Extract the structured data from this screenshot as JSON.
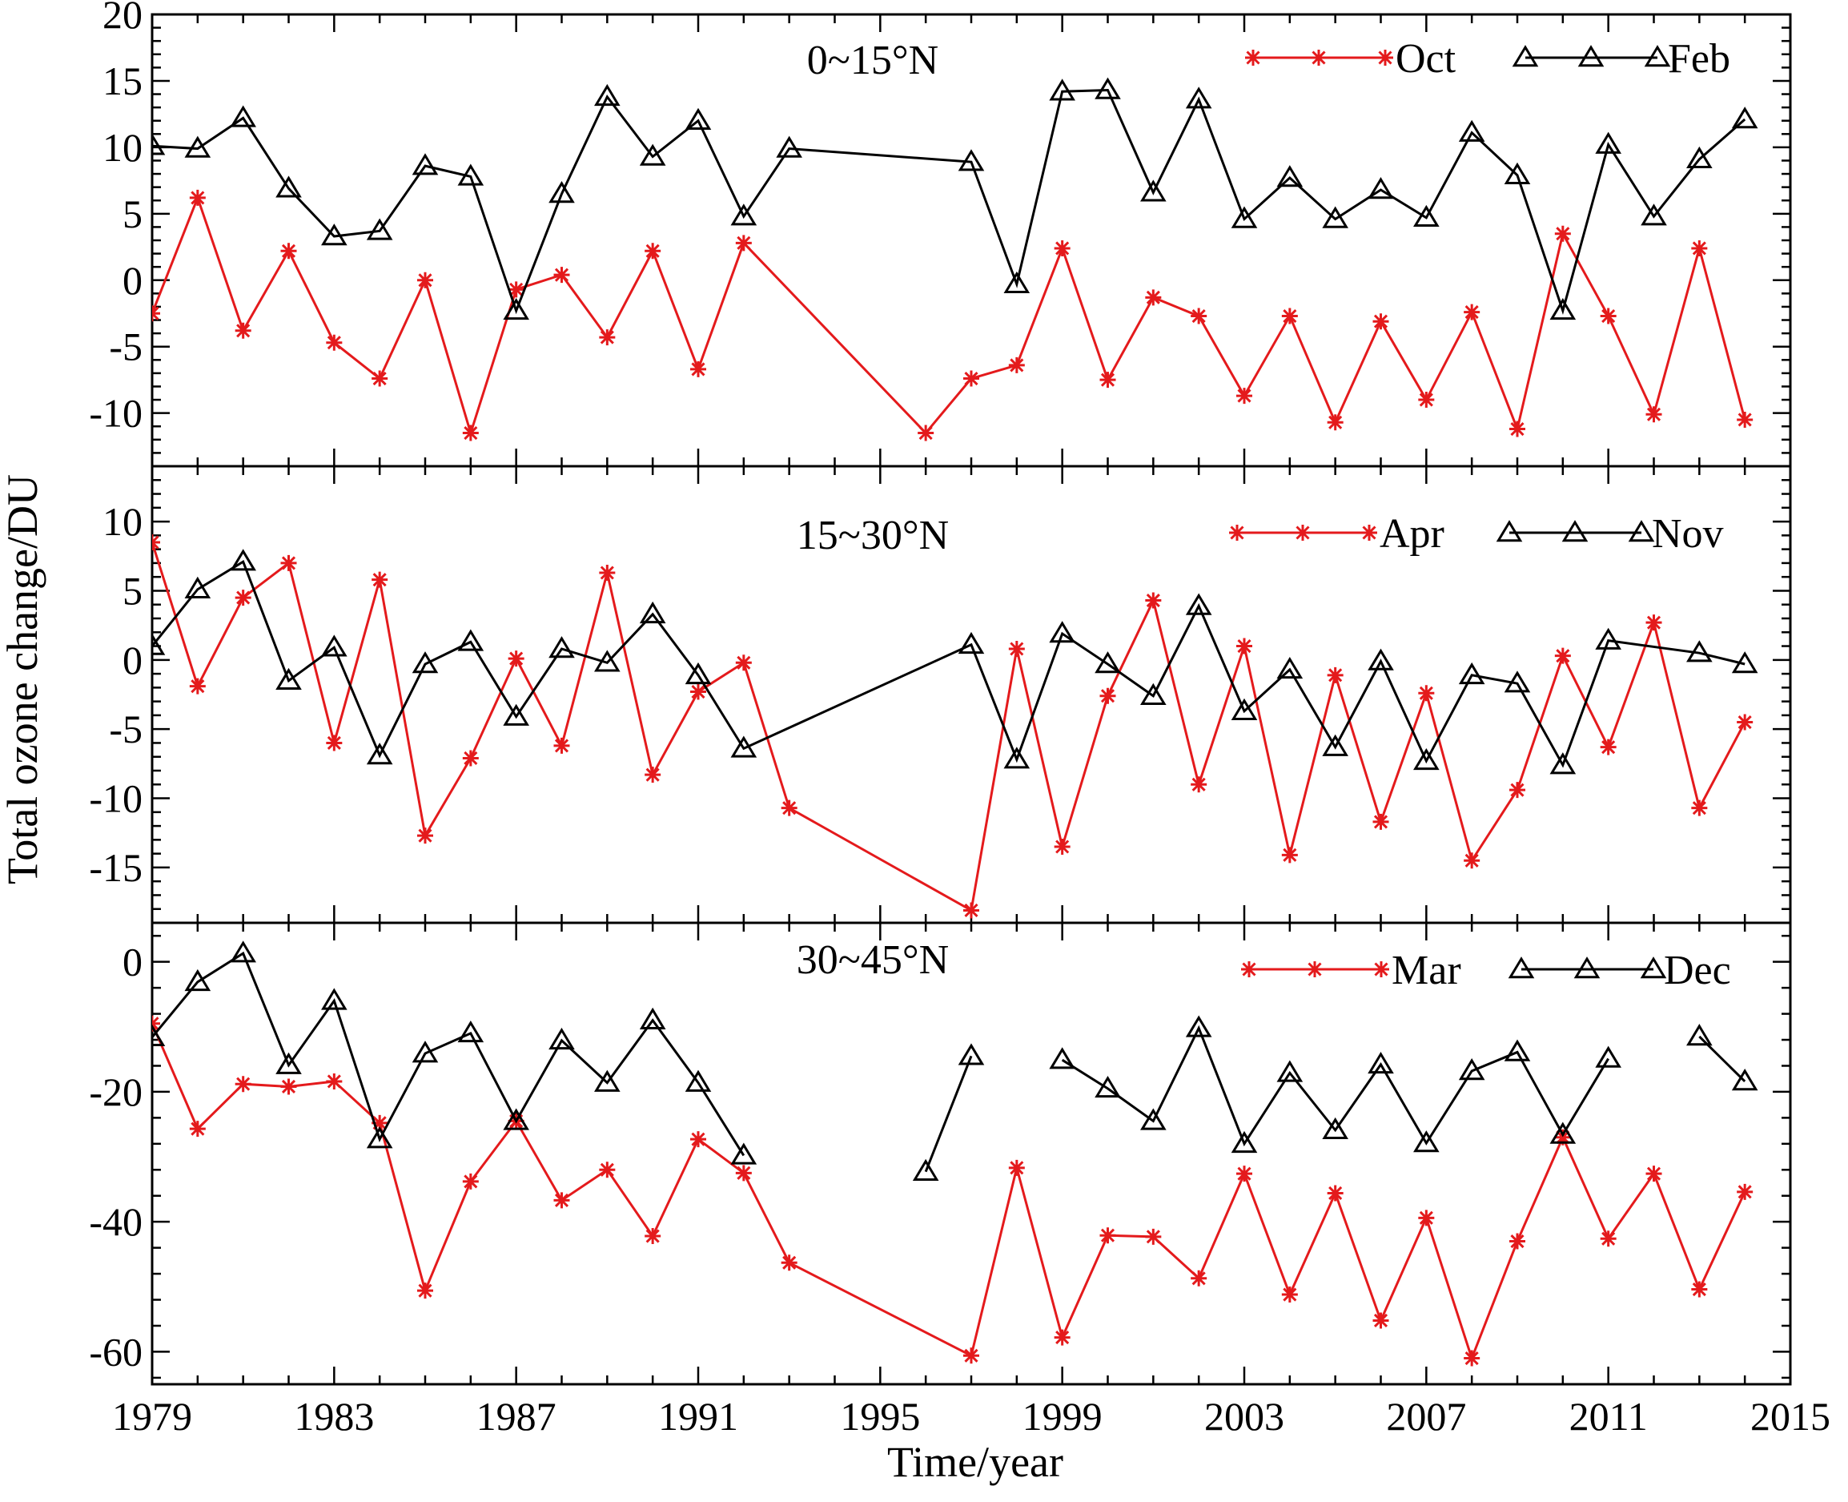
{
  "chart_data": {
    "type": "line",
    "ylabel": "Total ozone change/DU",
    "xlabel": "Time/year",
    "xlim": [
      1979,
      2015
    ],
    "xticks": [
      1979,
      1983,
      1987,
      1991,
      1995,
      1999,
      2003,
      2007,
      2011,
      2015
    ],
    "panels": [
      {
        "title": "0~15°N",
        "ylim": [
          -14,
          20
        ],
        "yticks": [
          -10,
          -5,
          0,
          5,
          10,
          15,
          20
        ],
        "series": [
          {
            "name": "Oct",
            "color": "#e41a1c",
            "marker": "star",
            "x": [
              1979,
              1980,
              1981,
              1982,
              1983,
              1984,
              1985,
              1986,
              1987,
              1988,
              1989,
              1990,
              1991,
              1992,
              1996,
              1997,
              1998,
              1999,
              2000,
              2001,
              2002,
              2003,
              2004,
              2005,
              2006,
              2007,
              2008,
              2009,
              2010,
              2011,
              2012,
              2013,
              2014
            ],
            "y": [
              -2.5,
              6.2,
              -3.8,
              2.2,
              -4.7,
              -7.4,
              0.0,
              -11.5,
              -0.7,
              0.4,
              -4.3,
              2.2,
              -6.7,
              2.8,
              -11.5,
              -7.4,
              -6.4,
              2.4,
              -7.5,
              -1.3,
              -2.7,
              -8.7,
              -2.7,
              -10.7,
              -3.1,
              -9.0,
              -2.4,
              -11.2,
              3.5,
              -2.7,
              -10.1,
              2.4,
              -10.5
            ]
          },
          {
            "name": "Feb",
            "color": "#000000",
            "marker": "triangle",
            "x": [
              1979,
              1980,
              1981,
              1982,
              1983,
              1984,
              1985,
              1986,
              1987,
              1988,
              1989,
              1990,
              1991,
              1992,
              1993,
              1997,
              1998,
              1999,
              2000,
              2001,
              2002,
              2003,
              2004,
              2005,
              2006,
              2007,
              2008,
              2009,
              2010,
              2011,
              2012,
              2013,
              2014
            ],
            "y": [
              10.1,
              9.9,
              12.2,
              6.9,
              3.3,
              3.7,
              8.6,
              7.8,
              -2.3,
              6.5,
              13.8,
              9.3,
              12.0,
              4.8,
              9.9,
              8.9,
              -0.3,
              14.2,
              14.3,
              6.6,
              13.6,
              4.6,
              7.7,
              4.6,
              6.8,
              4.7,
              11.1,
              7.9,
              -2.3,
              10.2,
              4.8,
              9.1,
              12.1
            ]
          }
        ]
      },
      {
        "title": "15~30°N",
        "ylim": [
          -19,
          14
        ],
        "yticks": [
          -15,
          -10,
          -5,
          0,
          5,
          10
        ],
        "series": [
          {
            "name": "Apr",
            "color": "#e41a1c",
            "marker": "star",
            "x": [
              1979,
              1980,
              1981,
              1982,
              1983,
              1984,
              1985,
              1986,
              1987,
              1988,
              1989,
              1990,
              1991,
              1992,
              1993,
              1997,
              1998,
              1999,
              2000,
              2001,
              2002,
              2003,
              2004,
              2005,
              2006,
              2007,
              2008,
              2009,
              2010,
              2011,
              2012,
              2013,
              2014
            ],
            "y": [
              8.5,
              -1.9,
              4.5,
              7.0,
              -6.0,
              5.8,
              -12.7,
              -7.1,
              0.1,
              -6.2,
              6.3,
              -8.3,
              -2.3,
              -0.2,
              -10.7,
              -18.1,
              0.8,
              -13.5,
              -2.6,
              4.3,
              -9.0,
              1.0,
              -14.1,
              -1.1,
              -11.7,
              -2.4,
              -14.5,
              -9.4,
              0.3,
              -6.3,
              2.7,
              -10.7,
              -4.5
            ]
          },
          {
            "name": "Nov",
            "color": "#000000",
            "marker": "triangle",
            "x": [
              1979,
              1980,
              1981,
              1982,
              1983,
              1984,
              1985,
              1986,
              1987,
              1988,
              1989,
              1990,
              1991,
              1992,
              1997,
              1998,
              1999,
              2000,
              2001,
              2002,
              2003,
              2004,
              2005,
              2006,
              2007,
              2008,
              2009,
              2010,
              2011,
              2013,
              2014
            ],
            "y": [
              1.0,
              5.1,
              7.1,
              -1.5,
              0.9,
              -6.9,
              -0.3,
              1.3,
              -4.1,
              0.8,
              -0.2,
              3.3,
              -1.1,
              -6.4,
              1.1,
              -7.2,
              1.9,
              -0.3,
              -2.6,
              3.9,
              -3.7,
              -0.7,
              -6.3,
              -0.1,
              -7.3,
              -1.1,
              -1.7,
              -7.6,
              1.4,
              0.5,
              -0.3
            ]
          }
        ]
      },
      {
        "title": "30~45°N",
        "ylim": [
          -65,
          6
        ],
        "yticks": [
          -60,
          -40,
          -20,
          0
        ],
        "series": [
          {
            "name": "Mar",
            "color": "#e41a1c",
            "marker": "star",
            "x": [
              1979,
              1980,
              1981,
              1982,
              1983,
              1984,
              1985,
              1986,
              1987,
              1988,
              1989,
              1990,
              1991,
              1992,
              1993,
              1997,
              1998,
              1999,
              2000,
              2001,
              2002,
              2003,
              2004,
              2005,
              2006,
              2007,
              2008,
              2009,
              2010,
              2011,
              2012,
              2013,
              2014
            ],
            "y": [
              -9.5,
              -25.7,
              -18.8,
              -19.2,
              -18.4,
              -24.8,
              -50.6,
              -33.8,
              -24.5,
              -36.7,
              -32.0,
              -42.2,
              -27.3,
              -32.5,
              -46.3,
              -60.6,
              -31.7,
              -57.8,
              -42.1,
              -42.3,
              -48.7,
              -32.6,
              -51.2,
              -35.6,
              -55.2,
              -39.4,
              -61.0,
              -43.0,
              -27.0,
              -42.6,
              -32.6,
              -50.4,
              -35.4
            ]
          },
          {
            "name": "Dec",
            "color": "#000000",
            "marker": "triangle",
            "x": [
              1979,
              1980,
              1981,
              1982,
              1983,
              1984,
              1985,
              1986,
              1987,
              1988,
              1989,
              1990,
              1991,
              1992,
              null,
              1996,
              1997,
              null,
              1999,
              2000,
              2001,
              2002,
              2003,
              2004,
              2005,
              2006,
              2007,
              2008,
              2009,
              2010,
              2011,
              null,
              2013,
              2014
            ],
            "y": [
              -11.6,
              -3.1,
              1.3,
              -15.9,
              -6.0,
              -27.3,
              -14.1,
              -11.0,
              -24.5,
              -12.1,
              -18.6,
              -9.0,
              -18.6,
              -29.8,
              null,
              -32.3,
              -14.5,
              null,
              -15.1,
              -19.5,
              -24.5,
              -10.2,
              -28.0,
              -17.1,
              -25.9,
              -15.8,
              -27.9,
              -16.8,
              -13.9,
              -26.6,
              -14.9,
              null,
              -11.5,
              -18.4
            ]
          }
        ]
      }
    ]
  }
}
